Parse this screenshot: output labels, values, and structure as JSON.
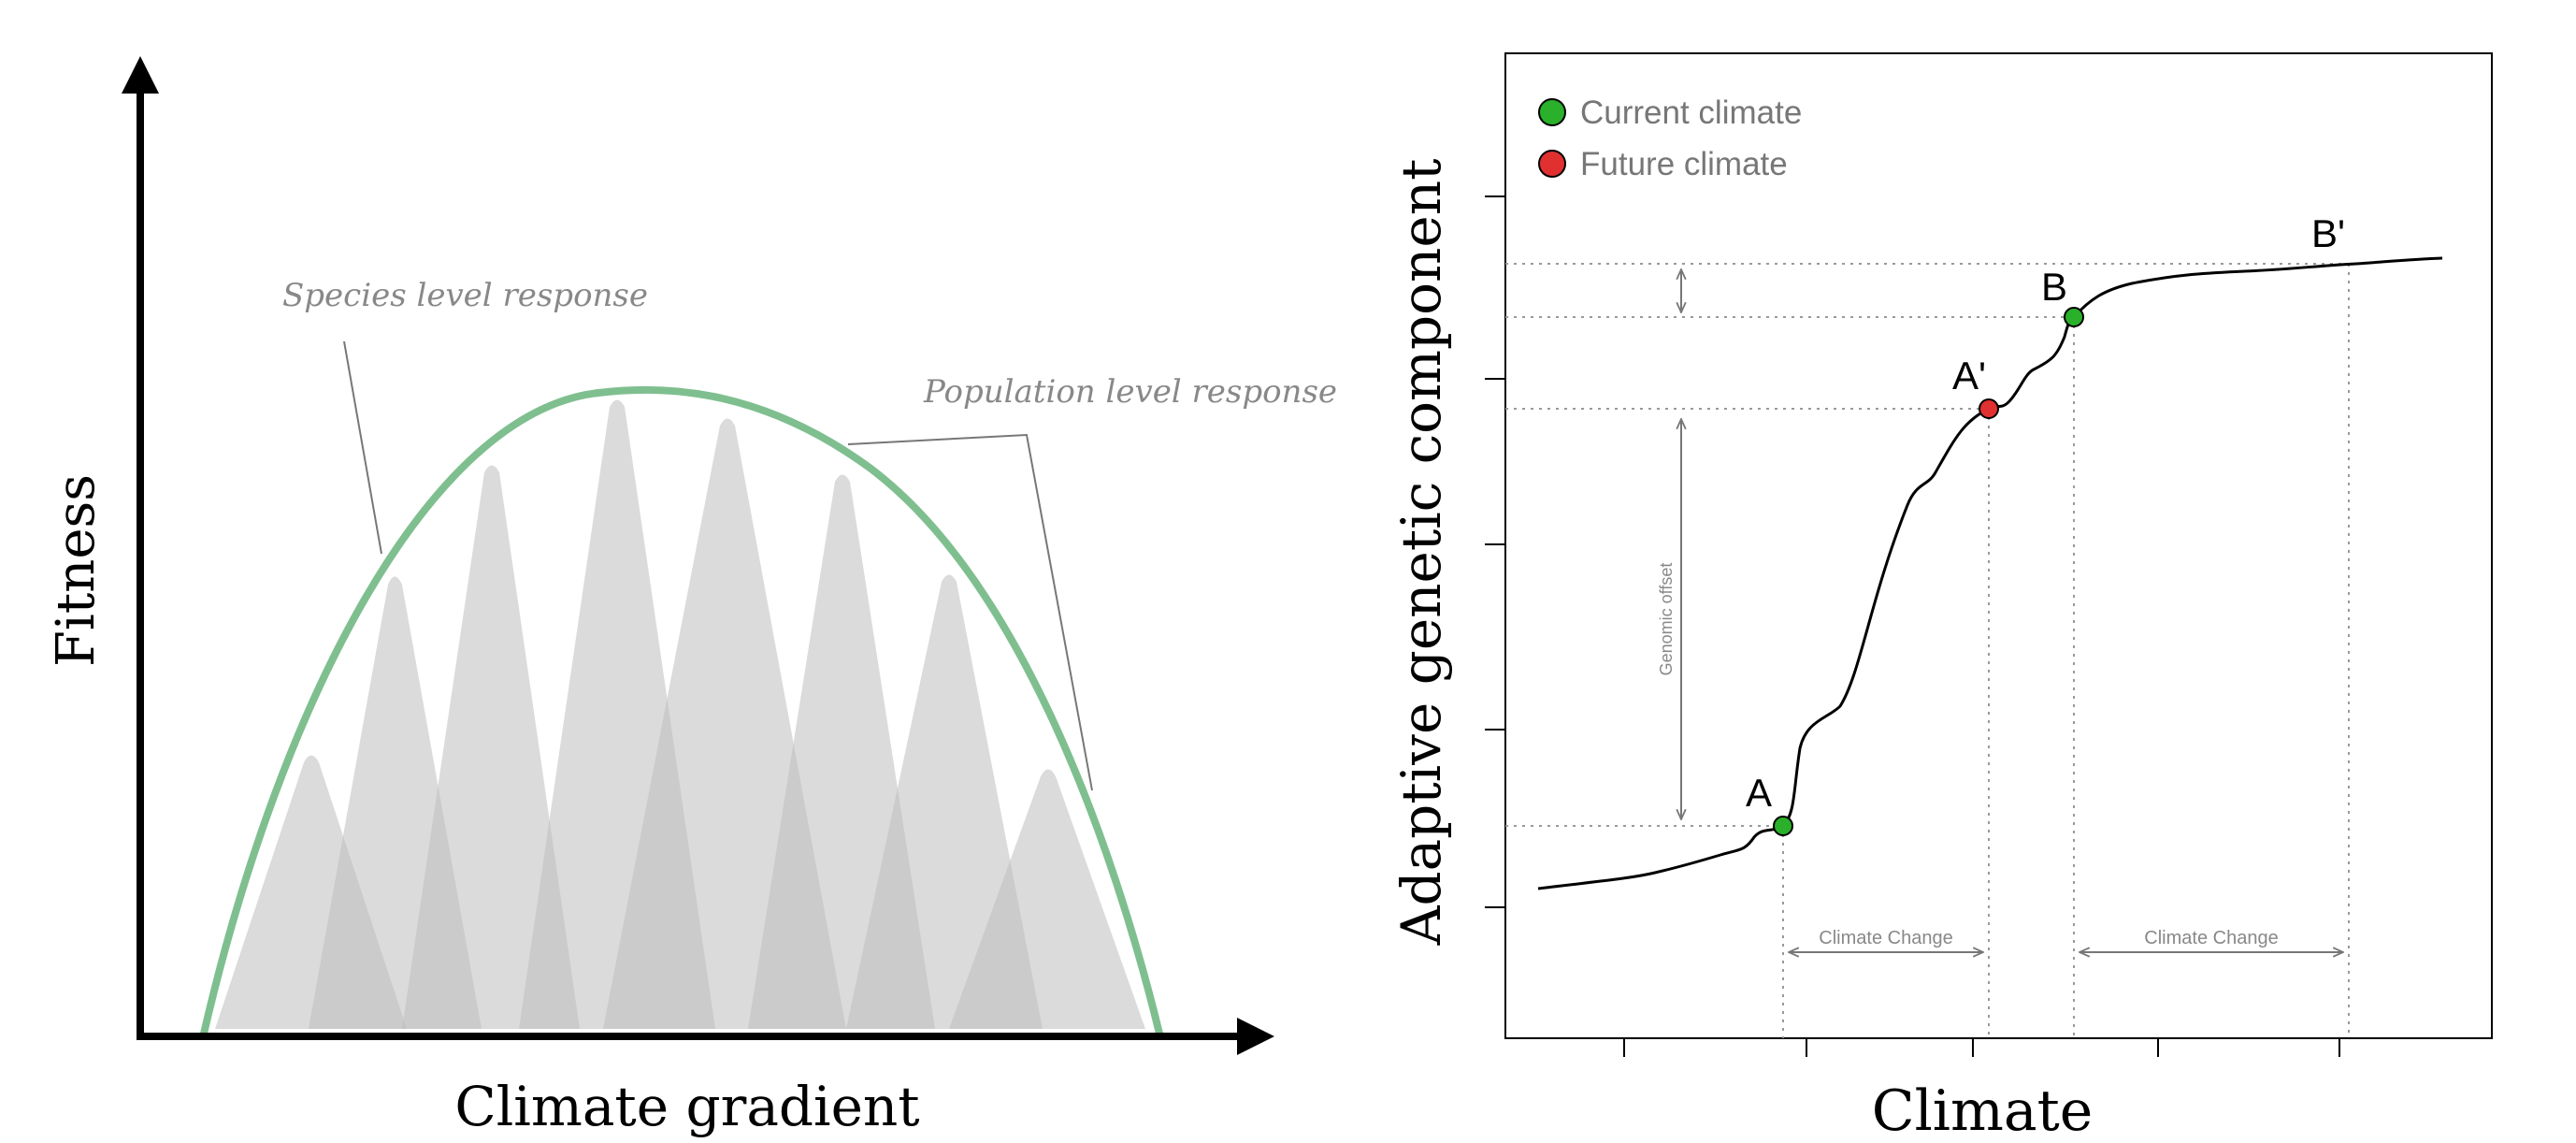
{
  "left_panel": {
    "y_axis_label": "Fitness",
    "x_axis_label": "Climate gradient",
    "species_annotation": "Species level response",
    "population_annotation": "Population level response",
    "species_curve_color": "#7fbf8f",
    "population_fill_color": "#bdbdbd"
  },
  "right_panel": {
    "y_axis_label": "Adaptive genetic component",
    "x_axis_label": "Climate",
    "legend": [
      {
        "label": "Current climate",
        "color": "#2ab02a"
      },
      {
        "label": "Future climate",
        "color": "#e03030"
      }
    ],
    "points": {
      "A": "A",
      "A_prime": "A'",
      "B": "B",
      "B_prime": "B'"
    },
    "genomic_offset_label": "Genomic offset",
    "climate_change_label_1": "Climate Change",
    "climate_change_label_2": "Climate Change"
  }
}
